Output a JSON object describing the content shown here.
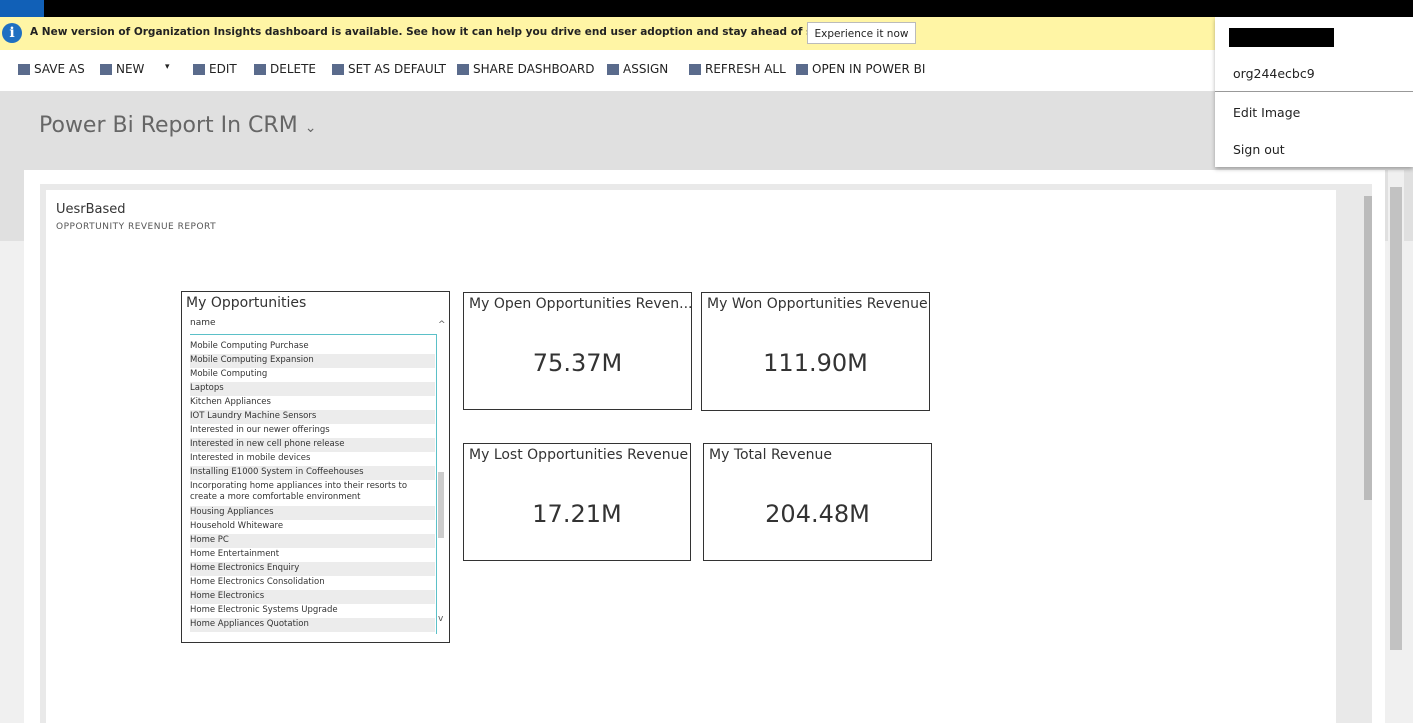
{
  "notification": {
    "text": "A New version of Organization Insights dashboard is available. See how it can help you drive end user adoption and stay ahead of support issues.",
    "button": "Experience it now"
  },
  "commands": [
    "SAVE AS",
    "NEW",
    "EDIT",
    "DELETE",
    "SET AS DEFAULT",
    "SHARE DASHBOARD",
    "ASSIGN",
    "REFRESH ALL",
    "OPEN IN POWER BI"
  ],
  "dashboard_title": "Power Bi Report In CRM",
  "user_menu": {
    "org": "org244ecbc9",
    "items": [
      "Edit Image",
      "Sign out"
    ]
  },
  "report": {
    "name": "UesrBased",
    "subtitle": "OPPORTUNITY REVENUE REPORT"
  },
  "table": {
    "title": "My Opportunities",
    "column": "name",
    "rows": [
      "Mobile Computing Purchase",
      "Mobile Computing Expansion",
      "Mobile Computing",
      "Laptops",
      "Kitchen Appliances",
      "IOT Laundry Machine Sensors",
      "Interested in our newer offerings",
      "Interested in new cell phone release",
      "Interested in mobile devices",
      "Installing E1000 System in Coffeehouses",
      "Incorporating home appliances into their resorts to create a more comfortable environment",
      "Housing Appliances",
      "Household Whiteware",
      "Home PC",
      "Home Entertainment",
      "Home Electronics Enquiry",
      "Home Electronics Consolidation",
      "Home Electronics",
      "Home Electronic Systems Upgrade",
      "Home Appliances Quotation"
    ]
  },
  "cards": [
    {
      "title": "My Open Opportunities Reven...",
      "value": "75.37M"
    },
    {
      "title": "My Won Opportunities Revenue",
      "value": "111.90M"
    },
    {
      "title": "My Lost Opportunities Revenue",
      "value": "17.21M"
    },
    {
      "title": "My Total Revenue",
      "value": "204.48M"
    }
  ]
}
